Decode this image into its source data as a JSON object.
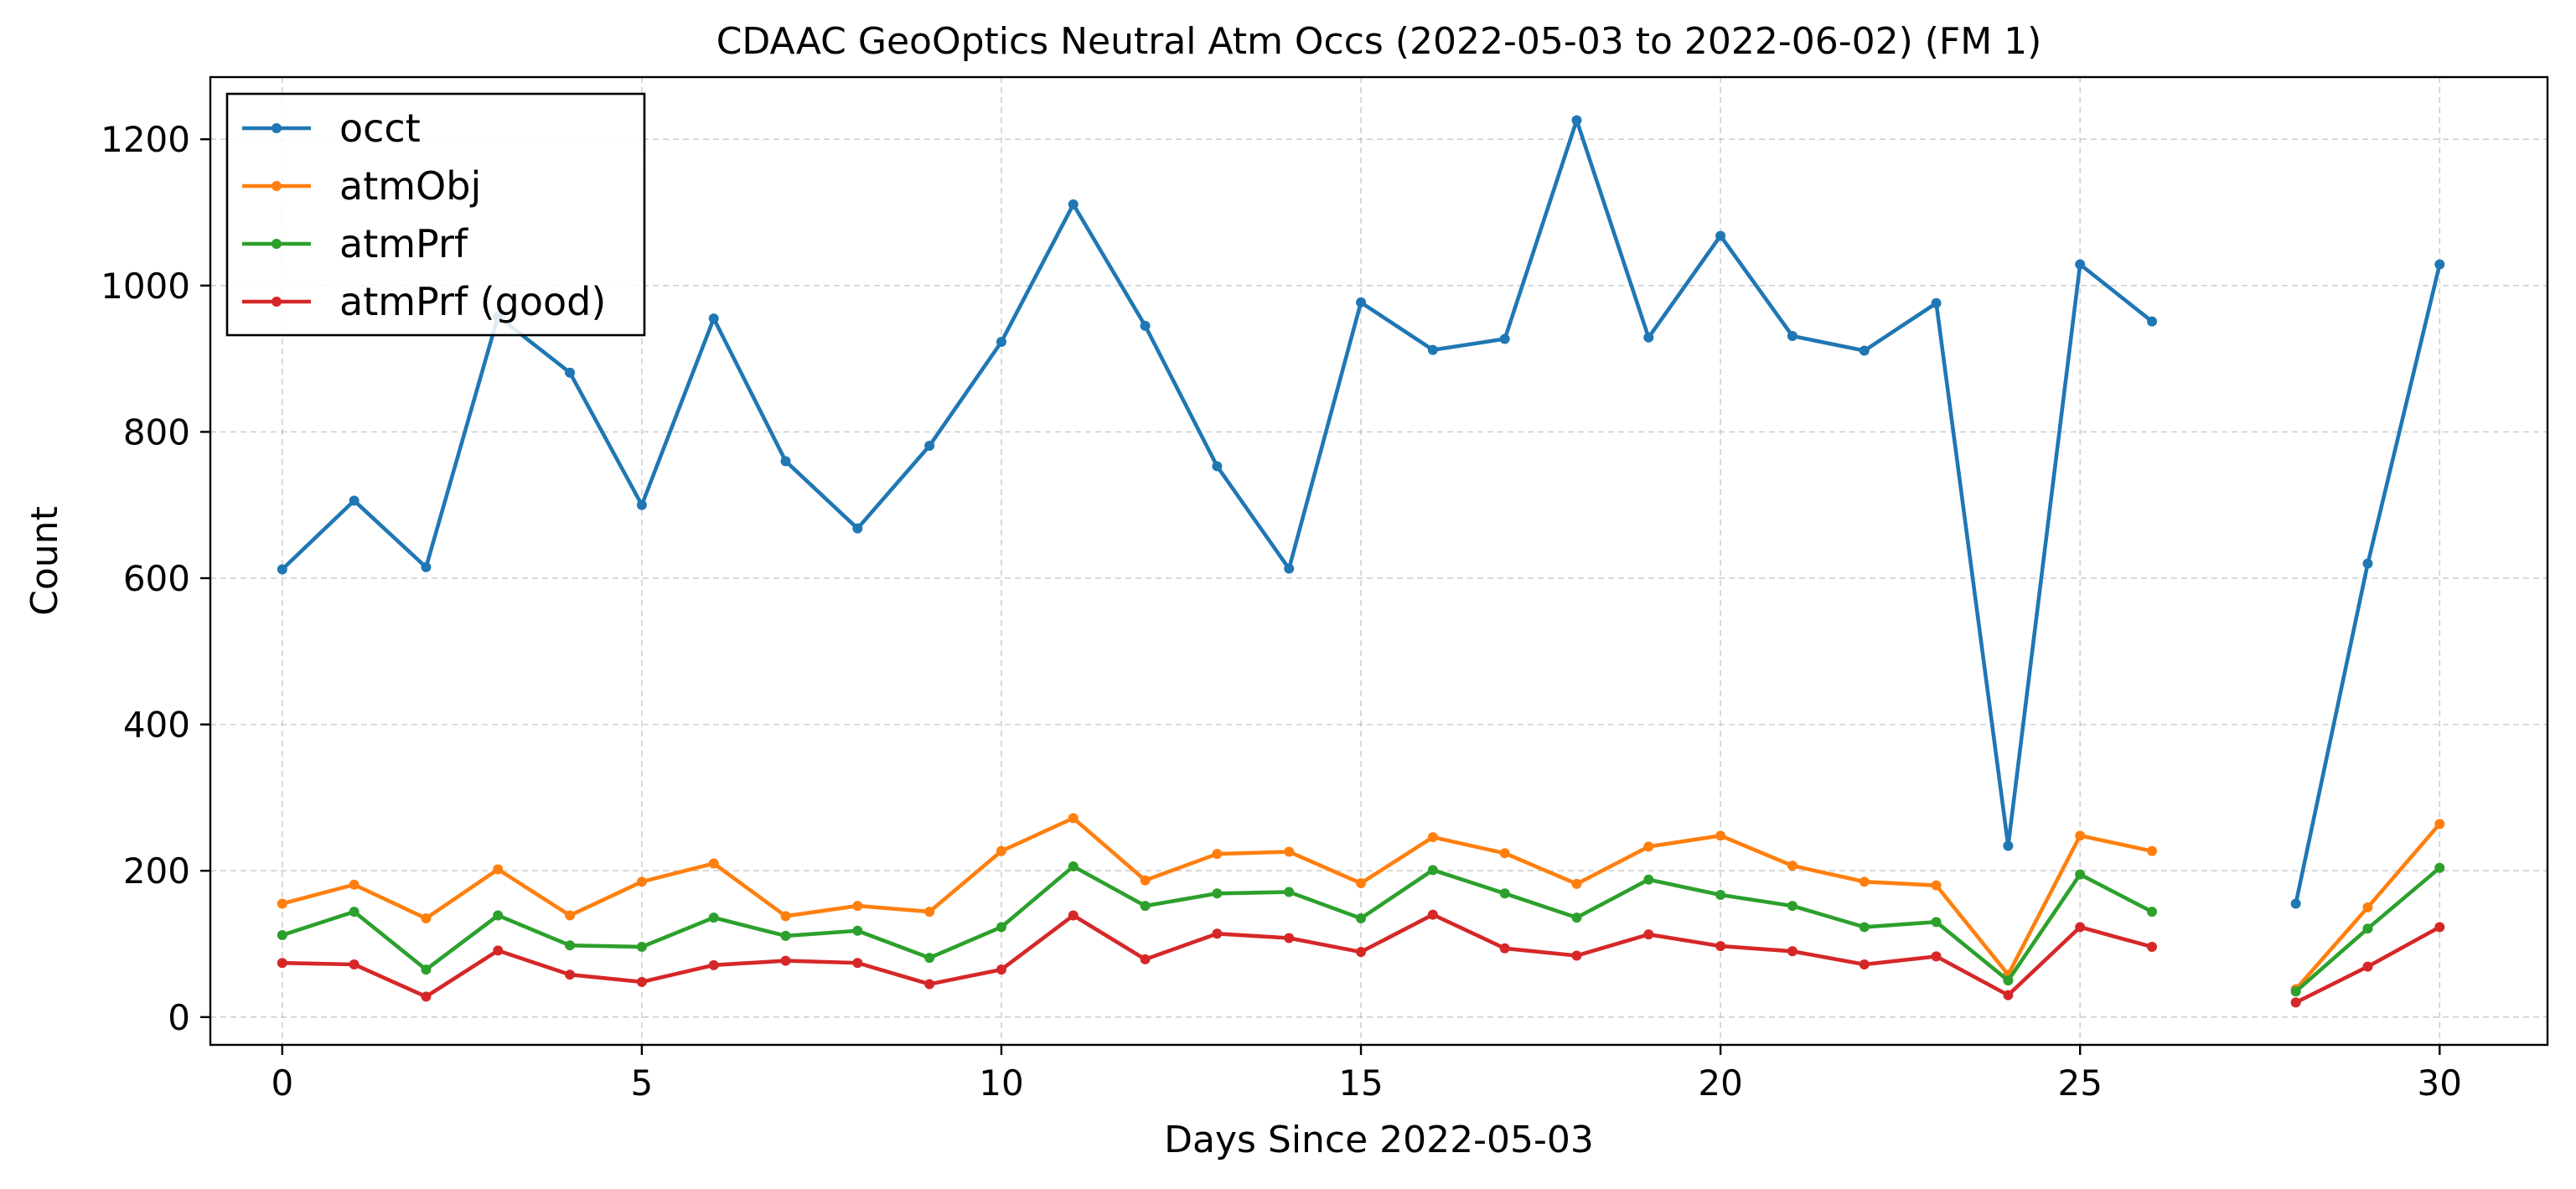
{
  "chart_data": {
    "type": "line",
    "title": "CDAAC GeoOptics Neutral Atm Occs (2022-05-03 to 2022-06-02) (FM 1)",
    "xlabel": "Days Since 2022-05-03",
    "ylabel": "Count",
    "xlim": [
      -1,
      31.5
    ],
    "ylim": [
      -38,
      1285
    ],
    "xticks": [
      0,
      5,
      10,
      15,
      20,
      25,
      30
    ],
    "yticks": [
      0,
      200,
      400,
      600,
      800,
      1000,
      1200
    ],
    "grid": true,
    "legend_position": "top-left",
    "x": [
      0,
      1,
      2,
      3,
      4,
      5,
      6,
      7,
      8,
      9,
      10,
      11,
      12,
      13,
      14,
      15,
      16,
      17,
      18,
      19,
      20,
      21,
      22,
      23,
      24,
      25,
      26,
      27,
      28,
      29,
      30
    ],
    "series": [
      {
        "name": "occt",
        "color": "#1f77b4",
        "values": [
          612,
          706,
          615,
          958,
          881,
          700,
          955,
          760,
          668,
          781,
          923,
          1111,
          945,
          753,
          613,
          977,
          912,
          927,
          1226,
          929,
          1068,
          931,
          911,
          976,
          234,
          1029,
          951,
          null,
          155,
          620,
          1029
        ]
      },
      {
        "name": "atmObj",
        "color": "#ff7f0e",
        "values": [
          155,
          181,
          135,
          202,
          139,
          185,
          210,
          138,
          152,
          144,
          227,
          272,
          187,
          223,
          226,
          183,
          246,
          224,
          182,
          233,
          248,
          207,
          185,
          180,
          58,
          248,
          227,
          null,
          38,
          150,
          264
        ]
      },
      {
        "name": "atmPrf",
        "color": "#2ca02c",
        "values": [
          112,
          144,
          65,
          139,
          98,
          96,
          136,
          111,
          118,
          81,
          123,
          206,
          152,
          169,
          171,
          135,
          201,
          169,
          136,
          188,
          167,
          152,
          123,
          130,
          50,
          195,
          144,
          null,
          35,
          121,
          204
        ]
      },
      {
        "name": "atmPrf (good)",
        "color": "#d62728",
        "values": [
          74,
          72,
          28,
          91,
          58,
          48,
          71,
          77,
          74,
          45,
          65,
          139,
          79,
          114,
          108,
          89,
          140,
          94,
          84,
          113,
          97,
          90,
          72,
          83,
          30,
          123,
          96,
          null,
          20,
          69,
          123
        ]
      }
    ]
  }
}
